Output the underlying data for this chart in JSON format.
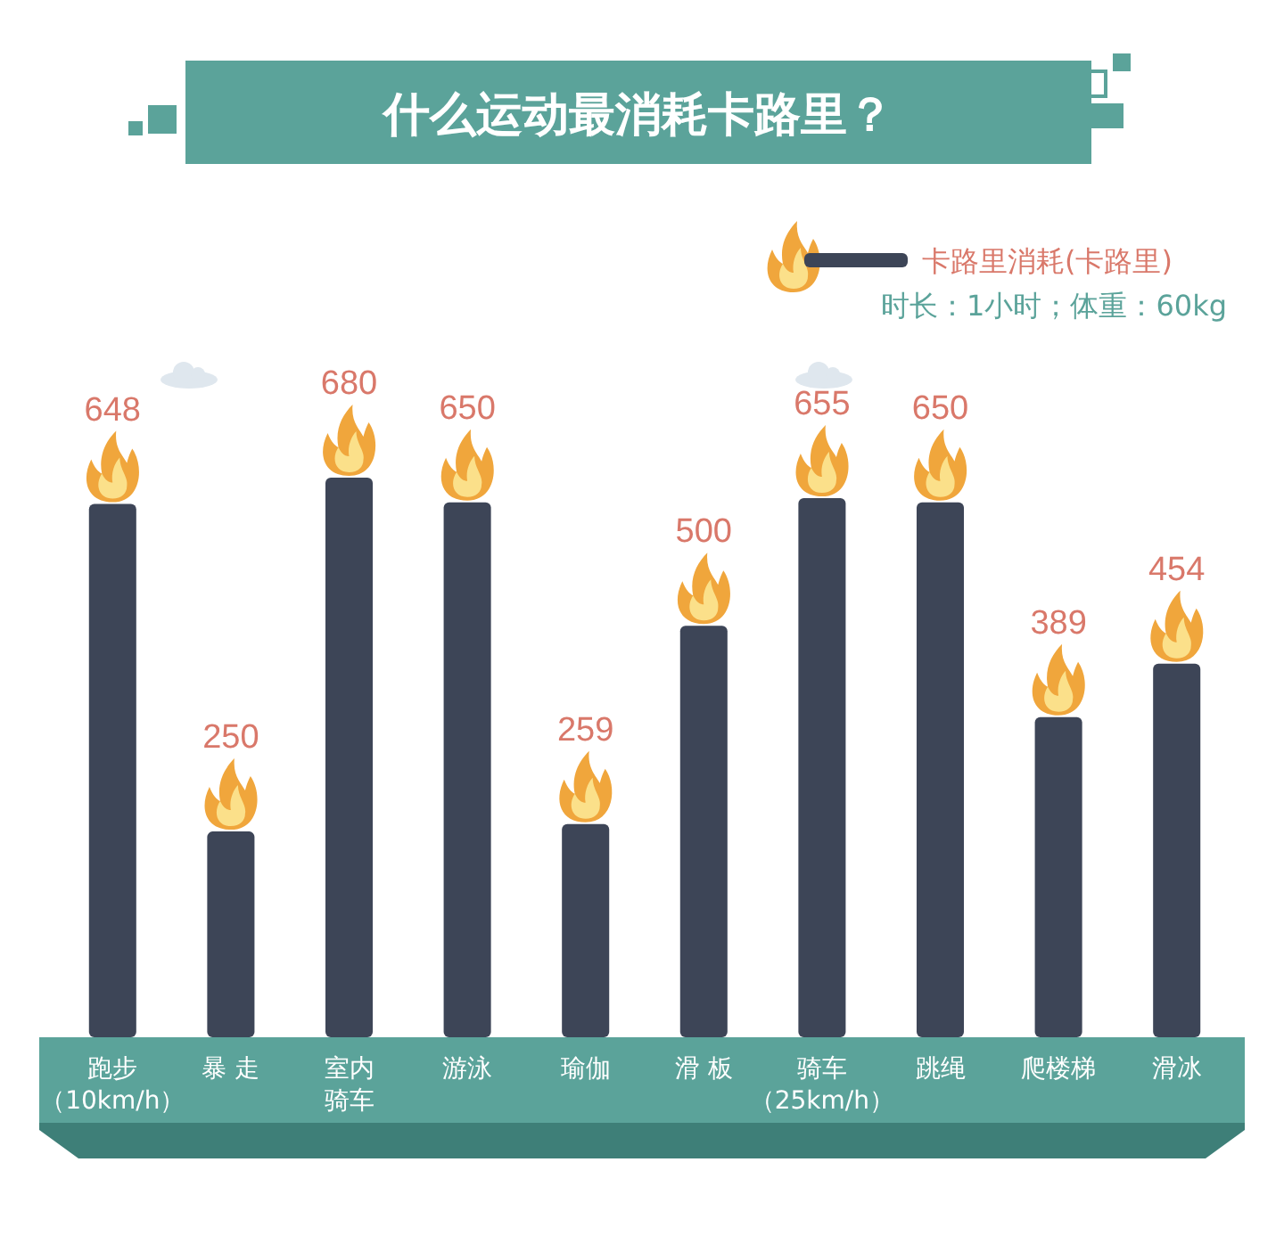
{
  "chart_data": {
    "type": "bar",
    "title": "什么运动最消耗卡路里？",
    "categories": [
      "跑步（10km/h）",
      "暴 走",
      "室内骑车",
      "游泳",
      "瑜伽",
      "滑 板",
      "骑车（25km/h）",
      "跳绳",
      "爬楼梯",
      "滑冰"
    ],
    "series": [
      {
        "name": "卡路里消耗(卡路里)",
        "color": "#3d4557",
        "values": [
          648,
          250,
          680,
          650,
          259,
          500,
          655,
          650,
          389,
          454
        ]
      }
    ],
    "relative": false,
    "data_labels": true,
    "legend": "top right",
    "annotations": [
      "时长：1小时；体重：60kg"
    ]
  }
}
